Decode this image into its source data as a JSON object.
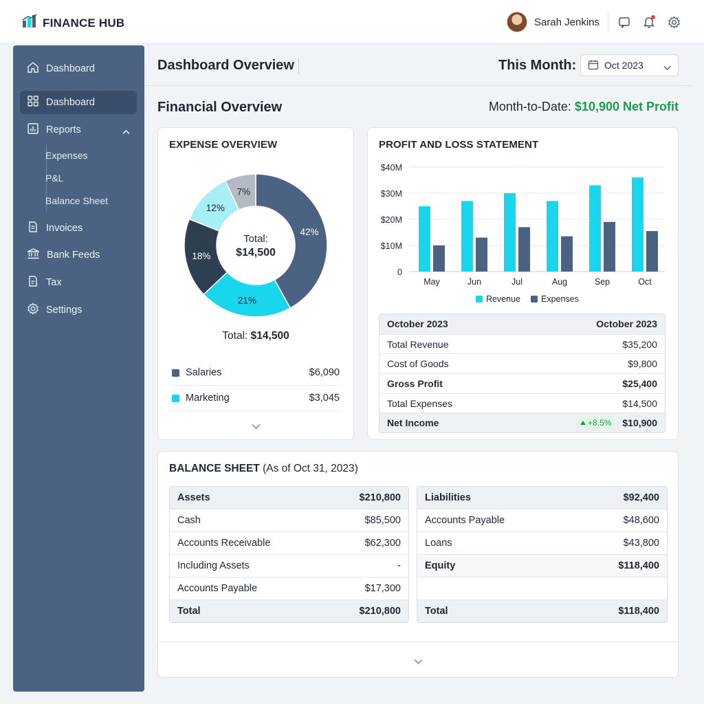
{
  "app": {
    "brand": "FINANCE HUB",
    "user_name": "Sarah Jenkins"
  },
  "sidebar": {
    "items": [
      {
        "label": "Dashboard",
        "icon": "home-icon"
      },
      {
        "label": "Dashboard",
        "icon": "grid-icon",
        "active": true
      },
      {
        "label": "Reports",
        "icon": "bar-chart-icon",
        "expanded": true
      },
      {
        "label": "Invoices",
        "icon": "document-icon"
      },
      {
        "label": "Bank Feeds",
        "icon": "bank-icon"
      },
      {
        "label": "Tax",
        "icon": "file-icon"
      },
      {
        "label": "Settings",
        "icon": "gear-icon"
      }
    ],
    "report_subitems": [
      "Expenses",
      "P&L",
      "Balance Sheet"
    ]
  },
  "header": {
    "title": "Dashboard Overview",
    "month_label": "This Month:",
    "month_value": "Oct 2023"
  },
  "overview": {
    "title": "Financial Overview",
    "mtd_label": "Month-to-Date: ",
    "mtd_value": "$10,900 Net Profit"
  },
  "expense": {
    "title": "EXPENSE OVERVIEW",
    "center_label": "Total:",
    "center_value": "$14,500",
    "total_label": "Total: ",
    "total_value": "$14,500",
    "slices": [
      {
        "pct": 42,
        "label": "42%",
        "color": "#4c6283"
      },
      {
        "pct": 21,
        "label": "21%",
        "color": "#19d6ec"
      },
      {
        "pct": 18,
        "label": "18%",
        "color": "#2f3f52"
      },
      {
        "pct": 12,
        "label": "12%",
        "color": "#a8eef6"
      },
      {
        "pct": 7,
        "label": "7%",
        "color": "#b3bac4"
      }
    ],
    "legend": [
      {
        "name": "Salaries",
        "amount": "$6,090",
        "color": "#4c6283"
      },
      {
        "name": "Marketing",
        "amount": "$3,045",
        "color": "#19d6ec"
      }
    ]
  },
  "pl": {
    "title": "PROFIT AND LOSS STATEMENT",
    "rows": [
      {
        "label": "October 2023",
        "value": "October 2023"
      },
      {
        "label": "Total Revenue",
        "value": "$35,200"
      },
      {
        "label": "Cost of Goods",
        "value": "$9,800"
      },
      {
        "label": "Gross Profit",
        "value": "$25,400"
      },
      {
        "label": "Total Expenses",
        "value": "$14,500"
      },
      {
        "label": "Net Income",
        "badge": "+8.5%",
        "value": "$10,900"
      }
    ]
  },
  "chart_data": {
    "type": "bar",
    "categories": [
      "May",
      "Jun",
      "Jul",
      "Aug",
      "Sep",
      "Oct"
    ],
    "series": [
      {
        "name": "Revenue",
        "values": [
          25,
          27,
          30,
          27,
          33,
          36
        ],
        "color": "#19d6ec"
      },
      {
        "name": "Expenses",
        "values": [
          10,
          13,
          17,
          13.5,
          19,
          15.5
        ],
        "color": "#4c6283"
      }
    ],
    "yticks": [
      "0",
      "$10M",
      "$20M",
      "$30M",
      "$40M"
    ],
    "ylim": [
      0,
      40
    ],
    "grid": true,
    "legend_position": "bottom"
  },
  "balance": {
    "title": "BALANCE SHEET",
    "subtitle": " (As of Oct 31, 2023)",
    "assets": [
      {
        "label": "Assets",
        "value": "$210,800"
      },
      {
        "label": "Cash",
        "value": "$85,500"
      },
      {
        "label": "Accounts Receivable",
        "value": "$62,300"
      },
      {
        "label": "Including Assets",
        "value": "-"
      },
      {
        "label": "Accounts Payable",
        "value": "$17,300"
      },
      {
        "label": "Total",
        "value": "$210,800"
      }
    ],
    "liabilities": [
      {
        "label": "Liabilities",
        "value": "$92,400"
      },
      {
        "label": "Accounts Payable",
        "value": "$48,600"
      },
      {
        "label": "Loans",
        "value": "$43,800"
      },
      {
        "label": "Equity",
        "value": "$118,400"
      },
      {
        "label": "",
        "value": ""
      },
      {
        "label": "Total",
        "value": "$118,400"
      }
    ]
  }
}
